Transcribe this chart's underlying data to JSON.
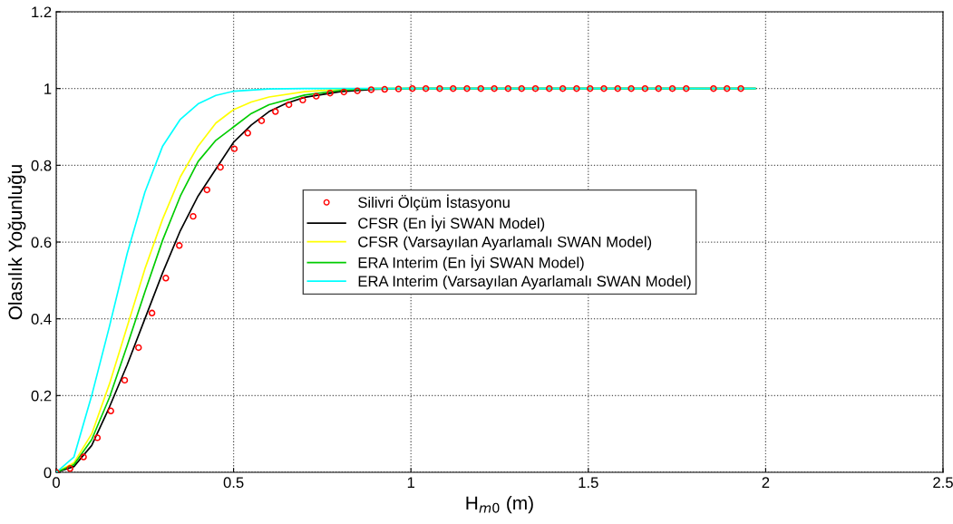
{
  "chart_data": {
    "type": "line",
    "xlabel": "H$_{m0}$ (m)",
    "ylabel": "Olasılık Yoğunluğu",
    "xlim": [
      0,
      2.5
    ],
    "ylim": [
      0,
      1.2
    ],
    "xticks": [
      0,
      0.5,
      1,
      1.5,
      2,
      2.5
    ],
    "yticks": [
      0,
      0.2,
      0.4,
      0.6,
      0.8,
      1,
      1.2
    ],
    "grid": true,
    "legend": "center",
    "series": [
      {
        "name": "Silivri Ölçüm İstasyonu",
        "type": "scatter",
        "marker": "circle",
        "color": "#ff0000",
        "x": [
          0,
          0.039,
          0.077,
          0.116,
          0.154,
          0.193,
          0.232,
          0.27,
          0.309,
          0.347,
          0.386,
          0.425,
          0.463,
          0.502,
          0.54,
          0.579,
          0.618,
          0.656,
          0.695,
          0.733,
          0.772,
          0.811,
          0.849,
          0.888,
          0.926,
          0.965,
          1.004,
          1.042,
          1.081,
          1.119,
          1.158,
          1.197,
          1.235,
          1.274,
          1.312,
          1.351,
          1.39,
          1.428,
          1.467,
          1.505,
          1.544,
          1.583,
          1.621,
          1.66,
          1.698,
          1.737,
          1.776,
          1.853,
          1.891,
          1.93
        ],
        "values": [
          0,
          0.01,
          0.04,
          0.09,
          0.16,
          0.24,
          0.325,
          0.415,
          0.506,
          0.591,
          0.667,
          0.736,
          0.795,
          0.843,
          0.884,
          0.916,
          0.94,
          0.958,
          0.97,
          0.98,
          0.988,
          0.991,
          0.994,
          0.997,
          0.998,
          0.999,
          1,
          1,
          1,
          1,
          1,
          1,
          1,
          1,
          1,
          1,
          1,
          1,
          1,
          1,
          1,
          1,
          1,
          1,
          1,
          1,
          1,
          1,
          1,
          1
        ]
      },
      {
        "name": "CFSR (En İyi SWAN Model)",
        "color": "#000000",
        "x": [
          0,
          0.05,
          0.1,
          0.15,
          0.2,
          0.25,
          0.3,
          0.35,
          0.4,
          0.45,
          0.5,
          0.55,
          0.6,
          0.65,
          0.7,
          0.8,
          0.9,
          1.0,
          1.97
        ],
        "values": [
          0,
          0.015,
          0.07,
          0.17,
          0.28,
          0.4,
          0.52,
          0.63,
          0.72,
          0.79,
          0.86,
          0.905,
          0.94,
          0.962,
          0.977,
          0.992,
          0.998,
          1,
          1
        ]
      },
      {
        "name": "CFSR (Varsayılan Ayarlamalı SWAN Model)",
        "color": "#ffff00",
        "x": [
          0,
          0.05,
          0.1,
          0.15,
          0.2,
          0.25,
          0.3,
          0.35,
          0.4,
          0.45,
          0.5,
          0.55,
          0.6,
          0.7,
          0.8,
          0.9,
          1.97
        ],
        "values": [
          0,
          0.025,
          0.1,
          0.23,
          0.38,
          0.53,
          0.66,
          0.77,
          0.85,
          0.91,
          0.945,
          0.965,
          0.978,
          0.992,
          0.998,
          1,
          1
        ]
      },
      {
        "name": "ERA Interim (En İyi SWAN Model)",
        "color": "#00cc00",
        "x": [
          0,
          0.05,
          0.1,
          0.15,
          0.2,
          0.25,
          0.3,
          0.35,
          0.4,
          0.45,
          0.5,
          0.55,
          0.6,
          0.7,
          0.8,
          0.9,
          1.97
        ],
        "values": [
          0,
          0.02,
          0.085,
          0.195,
          0.33,
          0.47,
          0.605,
          0.72,
          0.81,
          0.865,
          0.9,
          0.935,
          0.958,
          0.983,
          0.995,
          1,
          1
        ]
      },
      {
        "name": "ERA Interim (Varsayılan Ayarlamalı SWAN Model)",
        "color": "#00ffff",
        "x": [
          0,
          0.05,
          0.1,
          0.15,
          0.2,
          0.25,
          0.3,
          0.35,
          0.4,
          0.45,
          0.5,
          0.6,
          0.7,
          1.97
        ],
        "values": [
          0,
          0.04,
          0.2,
          0.38,
          0.57,
          0.73,
          0.85,
          0.92,
          0.96,
          0.982,
          0.993,
          0.999,
          1,
          1
        ]
      }
    ]
  }
}
